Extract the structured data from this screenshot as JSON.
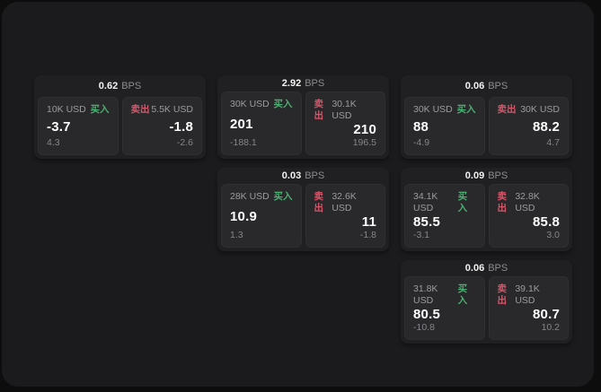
{
  "labels": {
    "bps": "BPS",
    "buy_tag": "买入",
    "sell_tag": "卖出"
  },
  "colors": {
    "buy_green": "#4caf72",
    "sell_red": "#d8566a",
    "panel_bg": "#1b1b1d",
    "card_bg": "#202022",
    "tile_bg": "#29292b"
  },
  "cards": [
    {
      "bps": "0.62",
      "row": 1,
      "col": 1,
      "buy": {
        "size": "10K USD",
        "value": "-3.7",
        "sub": "4.3"
      },
      "sell": {
        "size": "5.5K USD",
        "value": "-1.8",
        "sub": "-2.6"
      }
    },
    {
      "bps": "2.92",
      "row": 1,
      "col": 2,
      "buy": {
        "size": "30K USD",
        "value": "201",
        "sub": "-188.1"
      },
      "sell": {
        "size": "30.1K USD",
        "value": "210",
        "sub": "196.5"
      }
    },
    {
      "bps": "0.06",
      "row": 1,
      "col": 3,
      "buy": {
        "size": "30K USD",
        "value": "88",
        "sub": "-4.9"
      },
      "sell": {
        "size": "30K USD",
        "value": "88.2",
        "sub": "4.7"
      }
    },
    {
      "bps": "0.03",
      "row": 2,
      "col": 2,
      "buy": {
        "size": "28K USD",
        "value": "10.9",
        "sub": "1.3"
      },
      "sell": {
        "size": "32.6K USD",
        "value": "11",
        "sub": "-1.8"
      }
    },
    {
      "bps": "0.09",
      "row": 2,
      "col": 3,
      "buy": {
        "size": "34.1K USD",
        "value": "85.5",
        "sub": "-3.1"
      },
      "sell": {
        "size": "32.8K USD",
        "value": "85.8",
        "sub": "3.0"
      }
    },
    {
      "bps": "0.06",
      "row": 3,
      "col": 3,
      "buy": {
        "size": "31.8K USD",
        "value": "80.5",
        "sub": "-10.8"
      },
      "sell": {
        "size": "39.1K USD",
        "value": "80.7",
        "sub": "10.2"
      }
    }
  ]
}
